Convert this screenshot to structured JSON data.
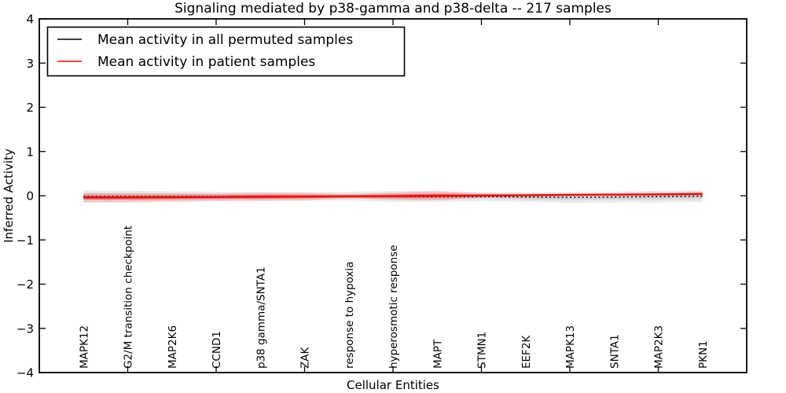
{
  "colors": {
    "background": "#ffffff",
    "frame": "#000000",
    "permuted_line": "#000000",
    "patient_line": "#ff0000"
  },
  "legend": {
    "entries": [
      {
        "label": "Mean activity in all permuted samples",
        "color": "#000000"
      },
      {
        "label": "Mean activity in patient samples",
        "color": "#ff0000"
      }
    ]
  },
  "chart_data": {
    "type": "line",
    "title": "Signaling mediated by p38-gamma and p38-delta -- 217 samples",
    "xlabel": "Cellular Entities",
    "ylabel": "Inferred Activity",
    "grid": false,
    "legend_position": "upper left",
    "xlim": [
      -1,
      15
    ],
    "ylim": [
      -4,
      4
    ],
    "yticks": [
      -4,
      -3,
      -2,
      -1,
      0,
      1,
      2,
      3,
      4
    ],
    "ytick_labels": [
      "−4",
      "−3",
      "−2",
      "−1",
      "0",
      "1",
      "2",
      "3",
      "4"
    ],
    "xtick_marks": [
      1,
      3,
      5,
      7,
      9,
      11,
      13
    ],
    "categories": [
      "MAPK12",
      "G2/M transition checkpoint",
      "MAP2K6",
      "CCND1",
      "p38 gamma/SNTA1",
      "ZAK",
      "response to hypoxia",
      "hyperosmotic response",
      "MAPT",
      "STMN1",
      "EEF2K",
      "MAPK13",
      "SNTA1",
      "MAP2K3",
      "PKN1"
    ],
    "series": [
      {
        "name": "Mean activity in all permuted samples",
        "color": "#000000",
        "style": "dotted",
        "values": [
          -0.02,
          -0.02,
          -0.02,
          -0.02,
          -0.015,
          -0.015,
          -0.01,
          -0.015,
          -0.02,
          -0.02,
          -0.03,
          -0.035,
          -0.03,
          -0.02,
          -0.01
        ]
      },
      {
        "name": "Mean activity in patient samples",
        "color": "#ff0000",
        "style": "solid",
        "values": [
          -0.04,
          -0.04,
          -0.035,
          -0.03,
          -0.025,
          -0.02,
          -0.015,
          -0.01,
          0.0,
          0.005,
          0.01,
          0.02,
          0.025,
          0.03,
          0.04
        ]
      }
    ],
    "bands": [
      {
        "name": "permuted-outer",
        "series_index": 0,
        "color": "#bbbbbb",
        "opacity": 0.3,
        "half_widths": [
          0.14,
          0.13,
          0.12,
          0.11,
          0.1,
          0.1,
          0.1,
          0.12,
          0.12,
          0.1,
          0.11,
          0.12,
          0.12,
          0.13,
          0.13
        ]
      },
      {
        "name": "permuted-inner",
        "series_index": 0,
        "color": "#aaaaaa",
        "opacity": 0.35,
        "half_widths": [
          0.07,
          0.065,
          0.06,
          0.055,
          0.05,
          0.05,
          0.05,
          0.06,
          0.06,
          0.05,
          0.055,
          0.06,
          0.06,
          0.065,
          0.065
        ]
      },
      {
        "name": "patient-outer",
        "series_index": 1,
        "color": "#ff0000",
        "opacity": 0.16,
        "half_widths": [
          0.1,
          0.1,
          0.09,
          0.08,
          0.09,
          0.08,
          0.05,
          0.08,
          0.1,
          0.05,
          0.035,
          0.03,
          0.03,
          0.04,
          0.05
        ]
      },
      {
        "name": "patient-inner",
        "series_index": 1,
        "color": "#ff0000",
        "opacity": 0.3,
        "half_widths": [
          0.05,
          0.05,
          0.045,
          0.04,
          0.045,
          0.04,
          0.025,
          0.04,
          0.05,
          0.025,
          0.02,
          0.015,
          0.015,
          0.02,
          0.025
        ]
      }
    ]
  }
}
